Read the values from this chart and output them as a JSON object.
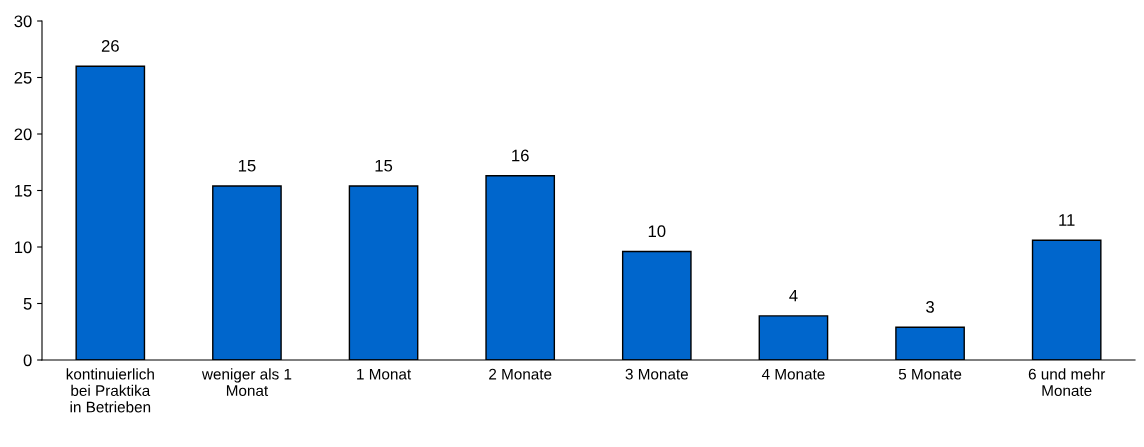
{
  "chart_data": {
    "type": "bar",
    "categories": [
      "kontinuierlich\nbei Praktika\nin Betrieben",
      "weniger als 1\nMonat",
      "1 Monat",
      "2 Monate",
      "3 Monate",
      "4 Monate",
      "5 Monate",
      "6 und mehr\nMonate"
    ],
    "values": [
      26,
      15.4,
      15.4,
      16.3,
      9.6,
      3.9,
      2.9,
      10.6
    ],
    "value_labels": [
      "26",
      "15",
      "15",
      "16",
      "10",
      "4",
      "3",
      "11"
    ],
    "color": "#0066cc",
    "ylim": [
      0,
      30
    ],
    "yticks": [
      0,
      5,
      10,
      15,
      20,
      25,
      30
    ],
    "grid": false,
    "legend": false
  }
}
